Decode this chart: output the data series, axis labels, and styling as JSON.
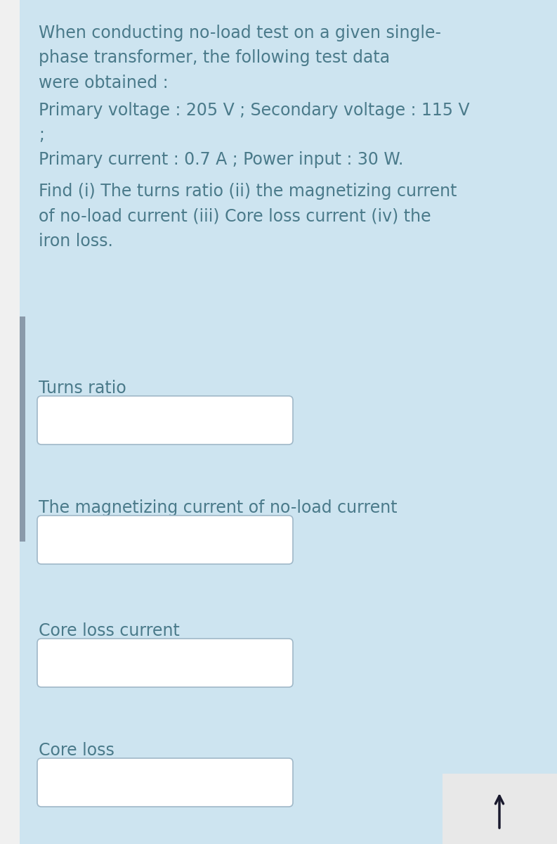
{
  "background_color": "#cde4f0",
  "page_bg": "#f0f0f0",
  "left_bar_color": "#8a9aaa",
  "text_color": "#4a7a8a",
  "box_bg_color": "#ffffff",
  "box_border_color": "#a0b8c8",
  "arrow_color": "#1a1a2e",
  "arrow_box_color": "#e8e8e8",
  "paragraph1": "When conducting no-load test on a given single-\nphase transformer, the following test data\nwere obtained :",
  "paragraph2": "Primary voltage : 205 V ; Secondary voltage : 115 V\n;",
  "paragraph3": "Primary current : 0.7 A ; Power input : 30 W.",
  "paragraph4": "Find (i) The turns ratio (ii) the magnetizing current\nof no-load current (iii) Core loss current (iv) the\niron loss.",
  "label1": "Turns ratio",
  "label2": "The magnetizing current of no-load current",
  "label3": "Core loss current",
  "label4": "Core loss",
  "font_size_body": 17,
  "font_size_label": 17,
  "figsize": [
    7.93,
    12.0
  ],
  "dpi": 100
}
